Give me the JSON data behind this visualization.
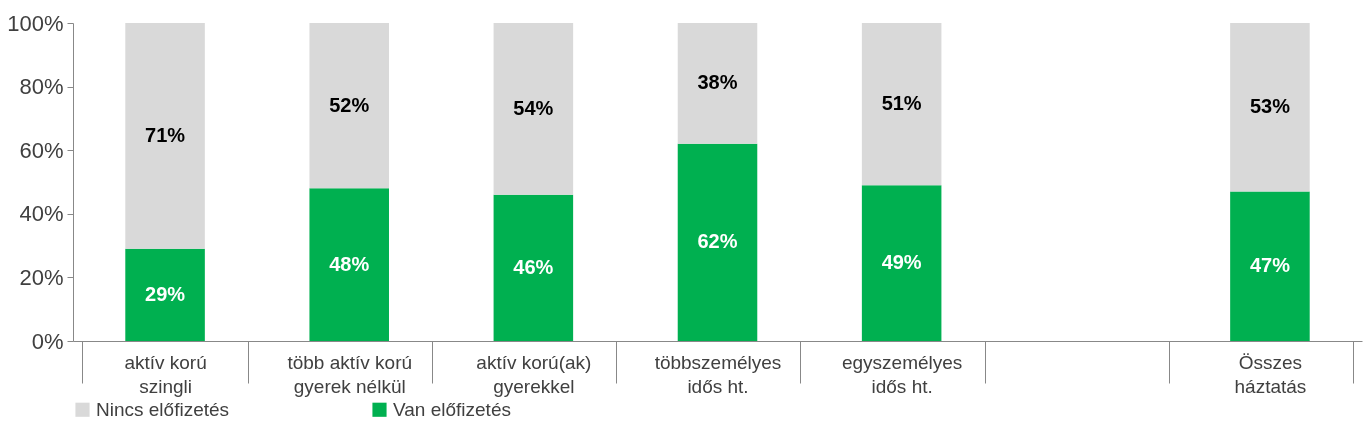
{
  "chart_data": {
    "type": "bar",
    "stacked": true,
    "categories": [
      "aktív korú szingli",
      "több aktív korú gyerek nélkül",
      "aktív korú(ak) gyerekkel",
      "többszemélyes idős ht.",
      "egyszemélyes idős ht.",
      null,
      "Összes háztatás"
    ],
    "series": [
      {
        "name": "Van előfizetés",
        "color": "#00b050",
        "values": [
          29,
          48,
          46,
          62,
          49,
          null,
          47
        ],
        "value_labels": [
          "29%",
          "48%",
          "46%",
          "62%",
          "49%",
          null,
          "47%"
        ]
      },
      {
        "name": "Nincs előfizetés",
        "color": "#d9d9d9",
        "values": [
          71,
          52,
          54,
          38,
          51,
          null,
          53
        ],
        "value_labels": [
          "71%",
          "52%",
          "54%",
          "38%",
          "51%",
          null,
          "53%"
        ]
      }
    ],
    "ylim": [
      0,
      100
    ],
    "yticks": [
      {
        "value": 0,
        "label": "0%"
      },
      {
        "value": 20,
        "label": "20%"
      },
      {
        "value": 40,
        "label": "40%"
      },
      {
        "value": 60,
        "label": "60%"
      },
      {
        "value": 80,
        "label": "80%"
      },
      {
        "value": 100,
        "label": "100%"
      }
    ],
    "legend": "bottom",
    "grid": false
  }
}
